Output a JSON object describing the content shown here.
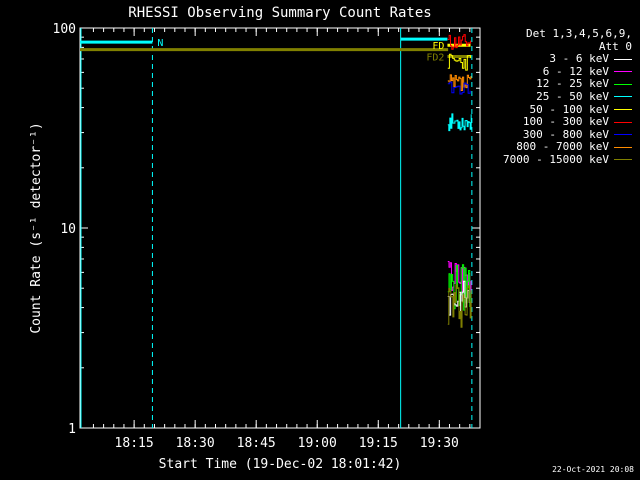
{
  "chart_data": {
    "type": "line",
    "title": "RHESSI Observing Summary Count Rates",
    "xlabel": "Start Time (19-Dec-02 18:01:42)",
    "ylabel": "Count Rate (s⁻¹ detector⁻¹)",
    "yscale": "log",
    "ylim": [
      1,
      100
    ],
    "xlim": [
      "18:01:42",
      "19:40:00"
    ],
    "y_ticks": [
      "1",
      "10",
      "100"
    ],
    "x_ticks": [
      "18:15",
      "18:30",
      "18:45",
      "19:00",
      "19:15",
      "19:30"
    ],
    "x_tick_minutes": [
      13.3,
      28.3,
      43.3,
      58.3,
      73.3,
      88.3
    ],
    "legend_title": "Det 1,3,4,5,6,9,",
    "legend_subtitle": "Att 0",
    "series": [
      {
        "name": "3 - 6 keV",
        "color": "#ffffff"
      },
      {
        "name": "6 - 12 keV",
        "color": "#ff00ff"
      },
      {
        "name": "12 - 25 keV",
        "color": "#00ff00"
      },
      {
        "name": "25 - 50 keV",
        "color": "#00ffff"
      },
      {
        "name": "50 - 100 keV",
        "color": "#ffff00"
      },
      {
        "name": "100 - 300 keV",
        "color": "#ff0000"
      },
      {
        "name": "300 - 800 keV",
        "color": "#0000ff"
      },
      {
        "name": "800 - 7000 keV",
        "color": "#ff8c00"
      },
      {
        "name": "7000 - 15000 keV",
        "color": "#808000"
      }
    ],
    "flags": [
      {
        "label": "N",
        "color": "#00ffff",
        "start": "18:01:42",
        "end": "18:19:30",
        "level": 85
      },
      {
        "label": "FD",
        "color": "#ffff00",
        "start": "19:32:00",
        "end": "19:37:40",
        "level": 82
      },
      {
        "label": "FD2",
        "color": "#808000",
        "start": "19:32:00",
        "end": "19:37:40",
        "level": 72
      }
    ],
    "event_segments": [
      {
        "series": "7000 - 15000 keV",
        "start": "18:01:42",
        "end": "19:32:10",
        "value": 78
      },
      {
        "series": "25 - 50 keV",
        "start": "19:20:30",
        "end": "19:32:00",
        "value": 88
      }
    ],
    "dashed_markers": [
      "18:19:30",
      "19:38:00"
    ],
    "solid_markers": [
      "18:01:42",
      "19:20:30"
    ]
  },
  "timestamp": "22-Oct-2021 20:08"
}
